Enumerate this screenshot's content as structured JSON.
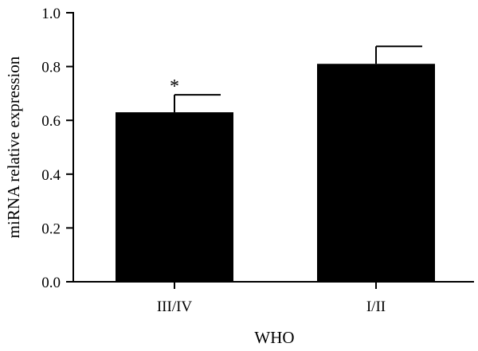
{
  "chart_data": {
    "type": "bar",
    "categories": [
      "III/IV",
      "I/II"
    ],
    "values": [
      0.63,
      0.81
    ],
    "errors": [
      0.065,
      0.065
    ],
    "annotations": [
      "*",
      ""
    ],
    "xlabel": "WHO",
    "ylabel": "miRNA relative expression",
    "ylim": [
      0,
      1.0
    ],
    "yticks": [
      "0.0",
      "0.2",
      "0.4",
      "0.6",
      "0.8",
      "1.0"
    ],
    "grid": false,
    "bar_color": "#000000"
  }
}
